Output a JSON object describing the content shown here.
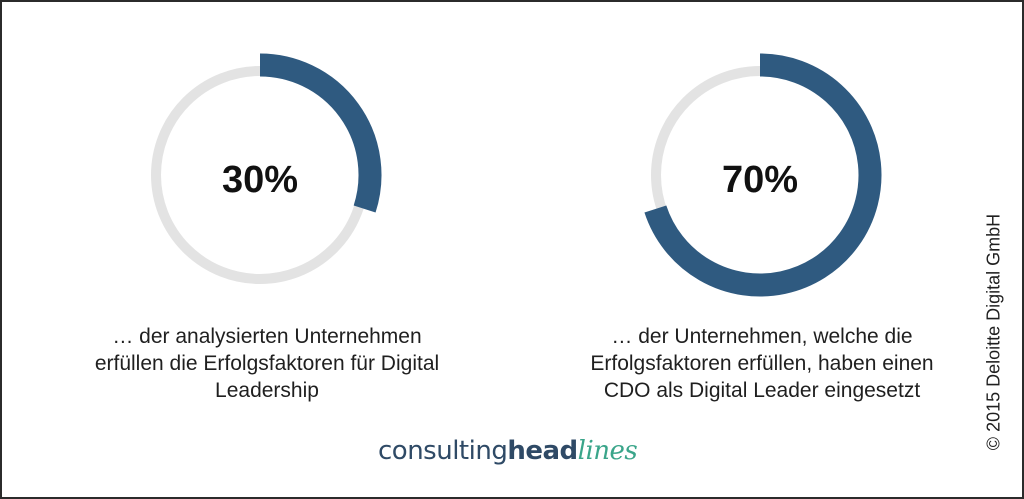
{
  "chart_data": [
    {
      "type": "pie",
      "value_percent": 30,
      "center_label": "30%",
      "caption_lines": [
        "… der analysierten Unternehmen",
        "erfüllen die Erfolgsfaktoren für Digital",
        "Leadership"
      ],
      "colors": {
        "fill": "#2f5a80",
        "track": "#e3e3e3"
      }
    },
    {
      "type": "pie",
      "value_percent": 70,
      "center_label": "70%",
      "caption_lines": [
        "… der Unternehmen, welche die",
        "Erfolgsfaktoren erfüllen, haben einen",
        "CDO als Digital Leader eingesetzt"
      ],
      "colors": {
        "fill": "#2f5a80",
        "track": "#e3e3e3"
      }
    }
  ],
  "brand": {
    "part1": "consulting",
    "part2": "head",
    "part3": "lines"
  },
  "copyright": "© 2015 Deloitte Digital GmbH"
}
